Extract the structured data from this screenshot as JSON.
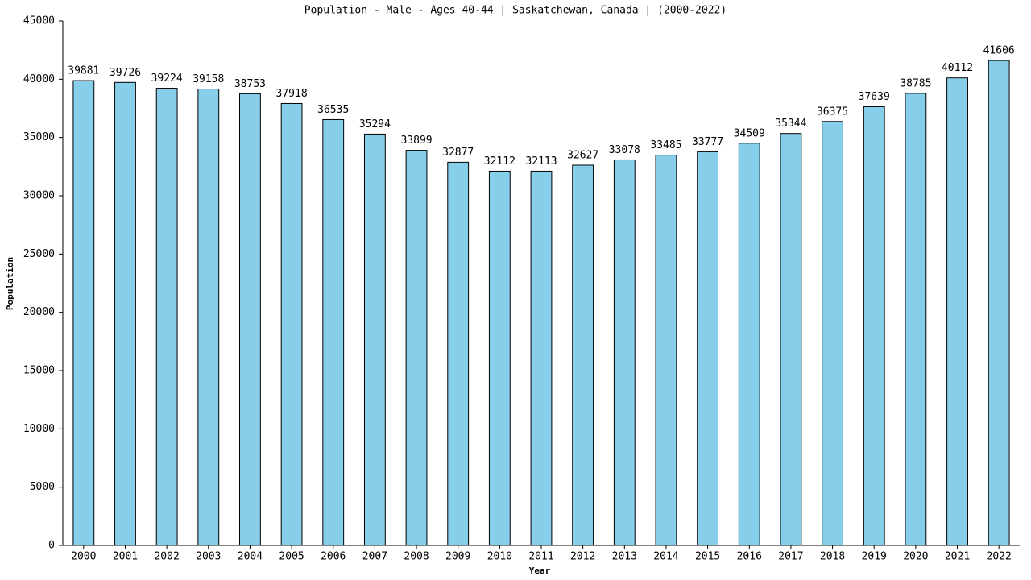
{
  "chart_data": {
    "type": "bar",
    "title": "Population - Male - Ages 40-44 | Saskatchewan, Canada |  (2000-2022)",
    "x_label": "Year",
    "y_label": "Population",
    "categories": [
      "2000",
      "2001",
      "2002",
      "2003",
      "2004",
      "2005",
      "2006",
      "2007",
      "2008",
      "2009",
      "2010",
      "2011",
      "2012",
      "2013",
      "2014",
      "2015",
      "2016",
      "2017",
      "2018",
      "2019",
      "2020",
      "2021",
      "2022"
    ],
    "values": [
      39881,
      39726,
      39224,
      39158,
      38753,
      37918,
      36535,
      35294,
      33899,
      32877,
      32112,
      32113,
      32627,
      33078,
      33485,
      33777,
      34509,
      35344,
      36375,
      37639,
      38785,
      40112,
      41606
    ],
    "color": "#87ceeb",
    "ylim": [
      0,
      45000
    ],
    "yticks": [
      0,
      5000,
      10000,
      15000,
      20000,
      25000,
      30000,
      35000,
      40000,
      45000
    ],
    "grid": false
  }
}
